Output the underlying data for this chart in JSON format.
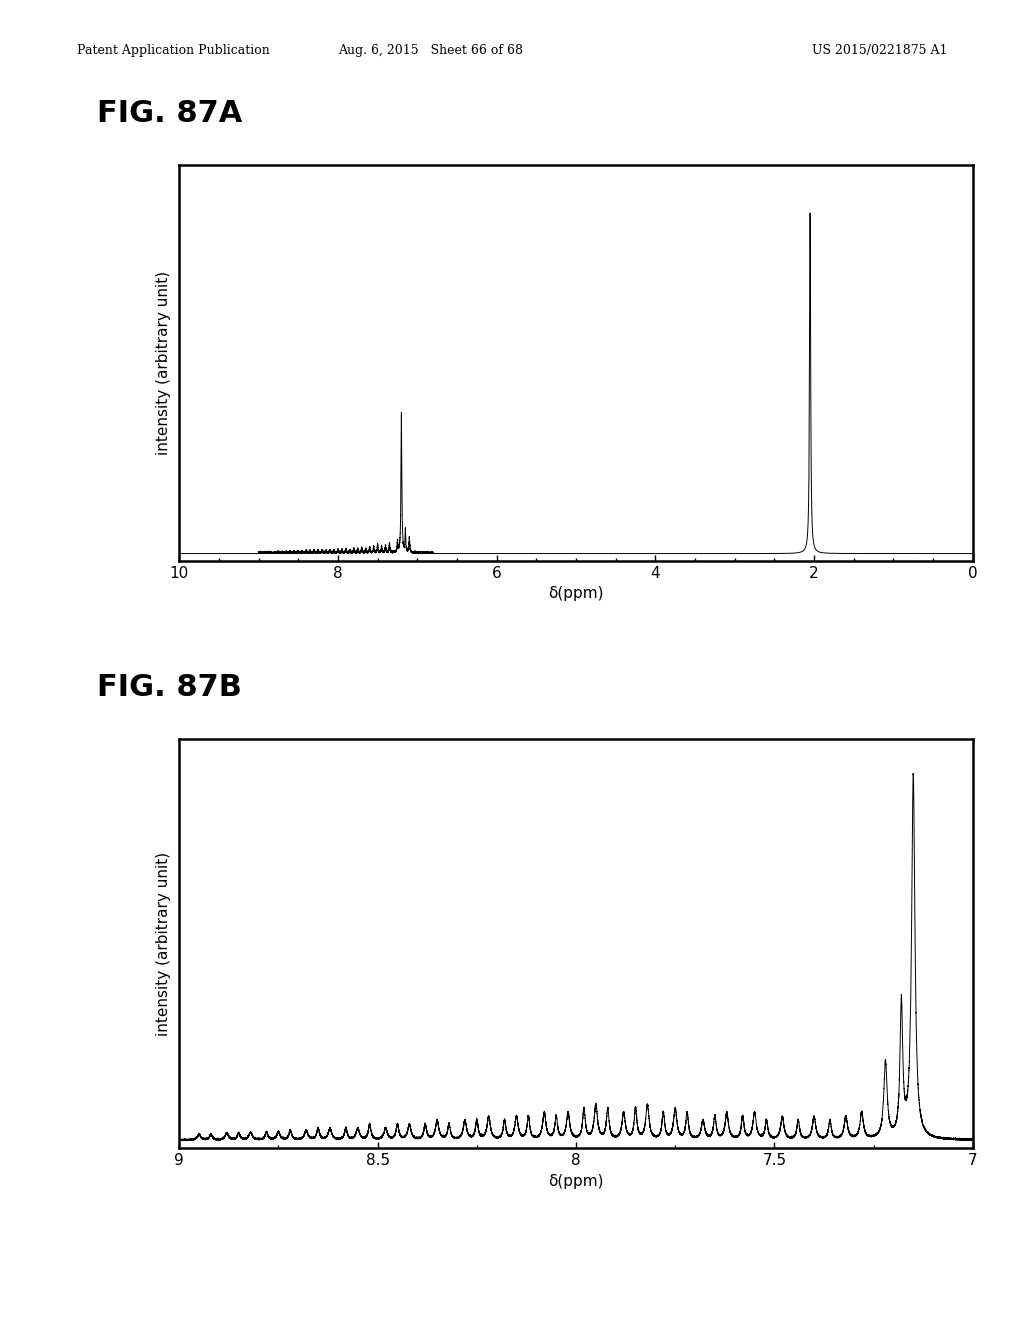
{
  "header_left": "Patent Application Publication",
  "header_center": "Aug. 6, 2015   Sheet 66 of 68",
  "header_right": "US 2015/0221875 A1",
  "fig_a_label": "FIG. 87A",
  "fig_b_label": "FIG. 87B",
  "ylabel": "intensity (arbitrary unit)",
  "xlabel": "δ(ppm)",
  "fig_a_xlim": [
    10,
    0
  ],
  "fig_a_xticks": [
    10,
    8,
    6,
    4,
    2,
    0
  ],
  "fig_b_xlim": [
    9,
    7
  ],
  "fig_b_xticks": [
    9,
    8.5,
    8,
    7.5,
    7
  ],
  "background_color": "#ffffff",
  "line_color": "#000000",
  "spine_color": "#000000",
  "header_fontsize": 9,
  "fig_label_fontsize": 22,
  "axis_label_fontsize": 11,
  "tick_fontsize": 11
}
